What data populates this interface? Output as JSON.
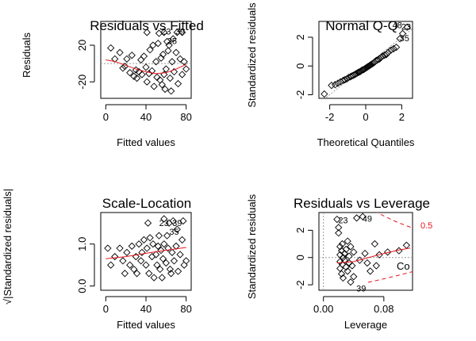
{
  "colors": {
    "smooth": "#e8141c",
    "ink": "#000000",
    "refline": "#9a9a9a"
  },
  "chart_data": [
    {
      "type": "scatter",
      "title": "Residuals vs Fitted",
      "xlabel": "Fitted values",
      "ylabel": "Residuals",
      "xlim": [
        -5,
        85
      ],
      "ylim": [
        -38,
        46
      ],
      "xticks": [
        "0",
        "40",
        "80"
      ],
      "xtick_values": [
        0,
        40,
        80
      ],
      "yticks": [
        "-20",
        "20"
      ],
      "ytick_values": [
        -20,
        20
      ],
      "hline": 0,
      "points": [
        [
          5,
          17
        ],
        [
          9,
          5
        ],
        [
          14,
          12
        ],
        [
          17,
          -5
        ],
        [
          19,
          -3
        ],
        [
          21,
          5
        ],
        [
          24,
          -10
        ],
        [
          26,
          9
        ],
        [
          28,
          -14
        ],
        [
          30,
          -7
        ],
        [
          31,
          -16
        ],
        [
          33,
          -9
        ],
        [
          35,
          4
        ],
        [
          36,
          -12
        ],
        [
          38,
          8
        ],
        [
          40,
          -4
        ],
        [
          41,
          -20
        ],
        [
          43,
          -11
        ],
        [
          44,
          15
        ],
        [
          46,
          -8
        ],
        [
          47,
          20
        ],
        [
          48,
          -25
        ],
        [
          50,
          2
        ],
        [
          51,
          -15
        ],
        [
          52,
          22
        ],
        [
          53,
          33
        ],
        [
          54,
          -18
        ],
        [
          55,
          6
        ],
        [
          56,
          -23
        ],
        [
          57,
          10
        ],
        [
          58,
          -12
        ],
        [
          59,
          -28
        ],
        [
          60,
          -6
        ],
        [
          61,
          24
        ],
        [
          62,
          14
        ],
        [
          64,
          -16
        ],
        [
          65,
          -30
        ],
        [
          66,
          2
        ],
        [
          68,
          -9
        ],
        [
          70,
          12
        ],
        [
          72,
          -22
        ],
        [
          74,
          5
        ],
        [
          76,
          -12
        ],
        [
          78,
          2
        ],
        [
          80,
          -6
        ],
        [
          63,
          20
        ],
        [
          67,
          27
        ],
        [
          71,
          34
        ],
        [
          76,
          34
        ],
        [
          41,
          34
        ],
        [
          58,
          34
        ]
      ],
      "smooth": [
        [
          0,
          4
        ],
        [
          10,
          2
        ],
        [
          20,
          -2
        ],
        [
          30,
          -6
        ],
        [
          40,
          -9
        ],
        [
          50,
          -11
        ],
        [
          60,
          -10
        ],
        [
          70,
          -6
        ],
        [
          80,
          -1
        ]
      ],
      "labels": [
        {
          "text": "23",
          "x": 60,
          "y": 35
        },
        {
          "text": "39",
          "x": 74,
          "y": 35
        },
        {
          "text": "35",
          "x": 66,
          "y": 25
        }
      ]
    },
    {
      "type": "scatter",
      "title": "Normal Q-Q",
      "xlabel": "Theoretical Quantiles",
      "ylabel": "Standardized residuals",
      "xlim": [
        -2.6,
        2.6
      ],
      "ylim": [
        -2.25,
        3.1
      ],
      "xticks": [
        "-2",
        "0",
        "2"
      ],
      "xtick_values": [
        -2,
        0,
        2
      ],
      "yticks": [
        "-2",
        "0",
        "2"
      ],
      "ytick_values": [
        -2,
        0,
        2
      ],
      "refline": [
        [
          -2.6,
          -2.6
        ],
        [
          2.6,
          2.6
        ]
      ],
      "points": [
        [
          -2.3,
          -1.95
        ],
        [
          -1.9,
          -1.35
        ],
        [
          -1.7,
          -1.3
        ],
        [
          -1.55,
          -1.2
        ],
        [
          -1.4,
          -1.1
        ],
        [
          -1.25,
          -1.0
        ],
        [
          -1.15,
          -0.95
        ],
        [
          -1.05,
          -0.9
        ],
        [
          -0.95,
          -0.8
        ],
        [
          -0.85,
          -0.75
        ],
        [
          -0.78,
          -0.7
        ],
        [
          -0.7,
          -0.66
        ],
        [
          -0.62,
          -0.6
        ],
        [
          -0.55,
          -0.55
        ],
        [
          -0.48,
          -0.5
        ],
        [
          -0.42,
          -0.45
        ],
        [
          -0.36,
          -0.42
        ],
        [
          -0.3,
          -0.38
        ],
        [
          -0.24,
          -0.32
        ],
        [
          -0.18,
          -0.28
        ],
        [
          -0.12,
          -0.25
        ],
        [
          -0.06,
          -0.2
        ],
        [
          0.0,
          -0.15
        ],
        [
          0.06,
          -0.1
        ],
        [
          0.12,
          -0.05
        ],
        [
          0.18,
          0.0
        ],
        [
          0.24,
          0.05
        ],
        [
          0.3,
          0.1
        ],
        [
          0.36,
          0.15
        ],
        [
          0.42,
          0.2
        ],
        [
          0.48,
          0.25
        ],
        [
          0.55,
          0.35
        ],
        [
          0.62,
          0.4
        ],
        [
          0.7,
          0.45
        ],
        [
          0.78,
          0.5
        ],
        [
          0.85,
          0.6
        ],
        [
          0.95,
          0.7
        ],
        [
          1.05,
          0.75
        ],
        [
          1.15,
          0.8
        ],
        [
          1.25,
          0.95
        ],
        [
          1.4,
          1.1
        ],
        [
          1.55,
          1.2
        ],
        [
          1.7,
          1.3
        ],
        [
          1.9,
          1.9
        ],
        [
          2.05,
          2.25
        ],
        [
          2.3,
          2.7
        ]
      ],
      "labels": [
        {
          "text": "48",
          "x": 1.75,
          "y": 2.85
        },
        {
          "text": "23",
          "x": 2.25,
          "y": 2.75
        },
        {
          "text": "35",
          "x": 2.15,
          "y": 1.95
        }
      ]
    },
    {
      "type": "scatter",
      "title": "Scale-Location",
      "xlabel": "Fitted values",
      "ylabel": "√|Standardized residuals|",
      "xlim": [
        -5,
        85
      ],
      "ylim": [
        -0.1,
        1.75
      ],
      "xticks": [
        "0",
        "40",
        "80"
      ],
      "xtick_values": [
        0,
        40,
        80
      ],
      "yticks": [
        "0.0",
        "1.0"
      ],
      "ytick_values": [
        0,
        1
      ],
      "points": [
        [
          2,
          0.9
        ],
        [
          5,
          0.5
        ],
        [
          9,
          0.7
        ],
        [
          14,
          0.9
        ],
        [
          17,
          0.6
        ],
        [
          19,
          0.3
        ],
        [
          21,
          0.8
        ],
        [
          24,
          0.5
        ],
        [
          26,
          0.95
        ],
        [
          28,
          0.4
        ],
        [
          30,
          0.7
        ],
        [
          31,
          0.3
        ],
        [
          33,
          1.0
        ],
        [
          35,
          0.6
        ],
        [
          36,
          0.8
        ],
        [
          38,
          1.1
        ],
        [
          40,
          0.5
        ],
        [
          41,
          0.9
        ],
        [
          43,
          0.3
        ],
        [
          44,
          1.15
        ],
        [
          46,
          0.7
        ],
        [
          47,
          1.0
        ],
        [
          48,
          0.2
        ],
        [
          50,
          0.75
        ],
        [
          51,
          0.5
        ],
        [
          52,
          0.95
        ],
        [
          53,
          1.2
        ],
        [
          54,
          0.4
        ],
        [
          55,
          0.85
        ],
        [
          56,
          0.2
        ],
        [
          57,
          0.65
        ],
        [
          58,
          1.0
        ],
        [
          60,
          0.55
        ],
        [
          61,
          1.2
        ],
        [
          62,
          0.9
        ],
        [
          64,
          0.4
        ],
        [
          65,
          0.3
        ],
        [
          66,
          0.8
        ],
        [
          68,
          0.6
        ],
        [
          70,
          0.95
        ],
        [
          72,
          0.35
        ],
        [
          74,
          0.75
        ],
        [
          76,
          1.1
        ],
        [
          78,
          0.5
        ],
        [
          80,
          0.6
        ],
        [
          63,
          1.5
        ],
        [
          67,
          1.55
        ],
        [
          71,
          1.35
        ],
        [
          77,
          1.55
        ],
        [
          42,
          1.5
        ],
        [
          58,
          1.6
        ]
      ],
      "smooth": [
        [
          0,
          0.65
        ],
        [
          20,
          0.7
        ],
        [
          40,
          0.78
        ],
        [
          60,
          0.85
        ],
        [
          80,
          0.92
        ]
      ],
      "labels": [
        {
          "text": "23",
          "x": 58,
          "y": 1.5
        },
        {
          "text": "39",
          "x": 71,
          "y": 1.5
        },
        {
          "text": "35",
          "x": 68,
          "y": 1.3
        }
      ]
    },
    {
      "type": "scatter",
      "title": "Residuals vs Leverage",
      "xlabel": "Leverage",
      "ylabel": "Standardized residuals",
      "xlim": [
        -0.006,
        0.118
      ],
      "ylim": [
        -2.4,
        3.3
      ],
      "xticks": [
        "0.00",
        "0.08"
      ],
      "xtick_values": [
        0,
        0.08
      ],
      "yticks": [
        "-2",
        "0",
        "2"
      ],
      "ytick_values": [
        -2,
        0,
        2
      ],
      "contour_label": "0.5",
      "cook_label": "Co",
      "points": [
        [
          0.018,
          2.8
        ],
        [
          0.02,
          2.2
        ],
        [
          0.02,
          1.8
        ],
        [
          0.022,
          0.8
        ],
        [
          0.022,
          0.2
        ],
        [
          0.022,
          -0.3
        ],
        [
          0.022,
          -0.8
        ],
        [
          0.024,
          -1.2
        ],
        [
          0.024,
          0.5
        ],
        [
          0.025,
          1.0
        ],
        [
          0.025,
          -0.5
        ],
        [
          0.026,
          0.0
        ],
        [
          0.026,
          -1.5
        ],
        [
          0.028,
          0.3
        ],
        [
          0.028,
          -0.2
        ],
        [
          0.03,
          0.6
        ],
        [
          0.03,
          -0.7
        ],
        [
          0.032,
          1.2
        ],
        [
          0.032,
          -1.0
        ],
        [
          0.034,
          0.1
        ],
        [
          0.034,
          -0.4
        ],
        [
          0.036,
          0.8
        ],
        [
          0.036,
          -1.8
        ],
        [
          0.038,
          -0.6
        ],
        [
          0.04,
          0.4
        ],
        [
          0.04,
          -1.4
        ],
        [
          0.044,
          2.9
        ],
        [
          0.048,
          -0.2
        ],
        [
          0.052,
          3.0
        ],
        [
          0.055,
          0.3
        ],
        [
          0.058,
          -0.4
        ],
        [
          0.062,
          -1.0
        ],
        [
          0.068,
          1.0
        ],
        [
          0.07,
          -0.6
        ],
        [
          0.074,
          0.2
        ],
        [
          0.085,
          0.4
        ],
        [
          0.1,
          0.5
        ],
        [
          0.11,
          0.9
        ]
      ],
      "smooth": [
        [
          0.018,
          -0.4
        ],
        [
          0.04,
          -0.3
        ],
        [
          0.06,
          0.0
        ],
        [
          0.08,
          0.3
        ],
        [
          0.1,
          0.55
        ],
        [
          0.115,
          0.7
        ]
      ],
      "labels": [
        {
          "text": "23",
          "x": 0.026,
          "y": 2.75
        },
        {
          "text": "49",
          "x": 0.058,
          "y": 2.85
        },
        {
          "text": "39",
          "x": 0.05,
          "y": -2.25
        }
      ]
    }
  ]
}
